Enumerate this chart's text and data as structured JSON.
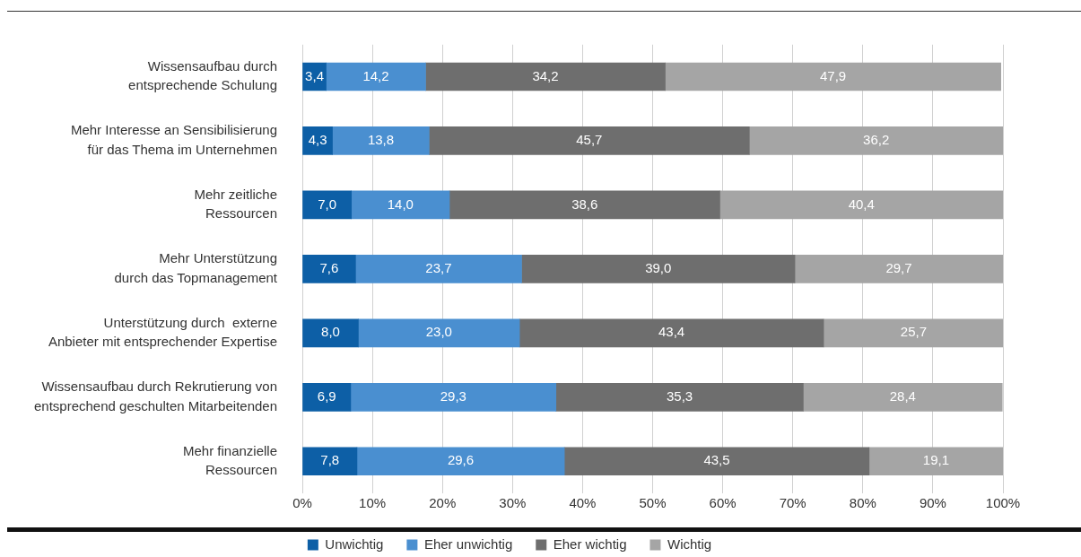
{
  "chart_data": {
    "type": "bar",
    "orientation": "horizontal",
    "stacked": true,
    "categories": [
      "Wissensaufbau durch entsprechende Schulung",
      "Mehr Interesse an Sensibilisierung für das Thema im Unternehmen",
      "Mehr zeitliche Ressourcen",
      "Mehr Unterstützung durch das Topmanagement",
      "Unterstützung durch  externe Anbieter mit entsprechender Expertise",
      "Wissensaufbau durch Rekrutierung von entsprechend geschulten Mitarbeitenden",
      "Mehr finanzielle Ressourcen"
    ],
    "series": [
      {
        "name": "Unwichtig",
        "color": "#0d5fa6",
        "values": [
          3.4,
          4.3,
          7.0,
          7.6,
          8.0,
          6.9,
          7.8
        ],
        "value_labels": [
          "3,4",
          "4,3",
          "7,0",
          "7,6",
          "8,0",
          "6,9",
          "7,8"
        ]
      },
      {
        "name": "Eher unwichtig",
        "color": "#4a8fd0",
        "values": [
          14.2,
          13.8,
          14.0,
          23.7,
          23.0,
          29.3,
          29.6
        ],
        "value_labels": [
          "14,2",
          "13,8",
          "14,0",
          "23,7",
          "23,0",
          "29,3",
          "29,6"
        ]
      },
      {
        "name": "Eher wichtig",
        "color": "#6e6e6e",
        "values": [
          34.2,
          45.7,
          38.6,
          39.0,
          43.4,
          35.3,
          43.5
        ],
        "value_labels": [
          "34,2",
          "45,7",
          "38,6",
          "39,0",
          "43,4",
          "35,3",
          "43,5"
        ]
      },
      {
        "name": "Wichtig",
        "color": "#a5a5a5",
        "values": [
          47.9,
          36.2,
          40.4,
          29.7,
          25.7,
          28.4,
          19.1
        ],
        "value_labels": [
          "47,9",
          "36,2",
          "40,4",
          "29,7",
          "25,7",
          "28,4",
          "19,1"
        ]
      }
    ],
    "xlim": [
      0,
      100
    ],
    "xticks": [
      {
        "value": 0,
        "label": "0%"
      },
      {
        "value": 10,
        "label": "10%"
      },
      {
        "value": 20,
        "label": "20%"
      },
      {
        "value": 30,
        "label": "30%"
      },
      {
        "value": 40,
        "label": "40%"
      },
      {
        "value": 50,
        "label": "50%"
      },
      {
        "value": 60,
        "label": "60%"
      },
      {
        "value": 70,
        "label": "70%"
      },
      {
        "value": 80,
        "label": "80%"
      },
      {
        "value": 90,
        "label": "90%"
      },
      {
        "value": 100,
        "label": "100%"
      }
    ],
    "grid": "x",
    "legend": "bottom"
  }
}
